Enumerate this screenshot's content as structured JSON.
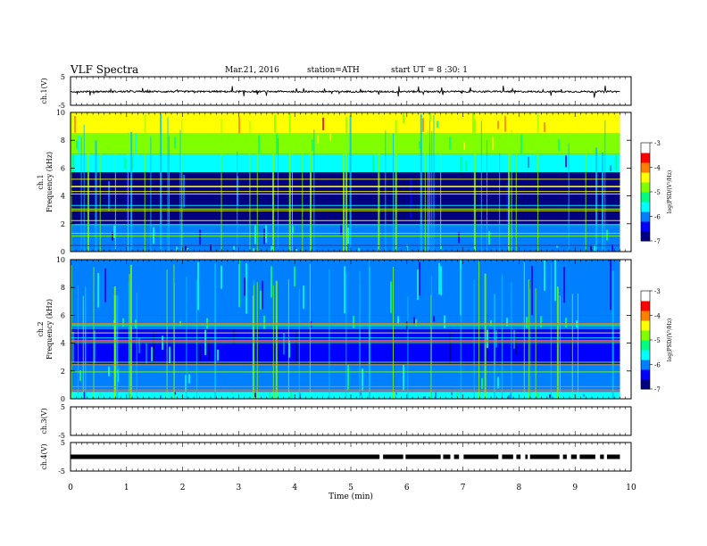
{
  "header": {
    "title": "VLF Spectra",
    "date": "Mar.21, 2016",
    "station": "station=ATH",
    "start": "start UT = 8 :30: 1"
  },
  "colorbar": {
    "label": "log(PSD/(V²/Hz)",
    "ticks": [
      "-3",
      "-4",
      "-5",
      "-6",
      "-7"
    ],
    "colors": [
      "#000080",
      "#0000ff",
      "#0080ff",
      "#00ffff",
      "#00ff80",
      "#80ff00",
      "#ffff00",
      "#ff8000",
      "#ff0000",
      "#ffffff"
    ]
  },
  "chart_data": [
    {
      "type": "line",
      "panel": "ch.1",
      "ylabel": "ch.1(V)",
      "ylim": [
        -5,
        5
      ],
      "yticks": [
        "5",
        "-5"
      ],
      "series": [
        {
          "x_range_min": [
            0,
            9.8
          ],
          "baseline_V": -0.2,
          "noise_amplitude_V": 0.6,
          "spike_amplitude_V": 2.0
        }
      ]
    },
    {
      "type": "heatmap",
      "panel": "ch.1 spectrogram",
      "ylabel": "ch.1 Frequency (kHz)",
      "xlim": [
        0,
        9.8
      ],
      "ylim": [
        0,
        10
      ],
      "yticks": [
        "10",
        "8",
        "6",
        "4",
        "2",
        "0"
      ],
      "bands": [
        {
          "from_kHz": 0,
          "to_kHz": 0.5,
          "logPSD": -6.2
        },
        {
          "from_kHz": 0.5,
          "to_kHz": 2.0,
          "logPSD": -6.0
        },
        {
          "from_kHz": 2.0,
          "to_kHz": 5.7,
          "logPSD": -6.8
        },
        {
          "from_kHz": 5.7,
          "to_kHz": 7.0,
          "logPSD": -5.6
        },
        {
          "from_kHz": 7.0,
          "to_kHz": 8.5,
          "logPSD": -5.0
        },
        {
          "from_kHz": 8.5,
          "to_kHz": 10.0,
          "logPSD": -4.4
        }
      ]
    },
    {
      "type": "heatmap",
      "panel": "ch.2 spectrogram",
      "ylabel": "ch.2 Frequency (kHz)",
      "xlim": [
        0,
        9.8
      ],
      "ylim": [
        0,
        10
      ],
      "yticks": [
        "10",
        "8",
        "6",
        "4",
        "2",
        "0"
      ],
      "bands": [
        {
          "from_kHz": 0,
          "to_kHz": 0.5,
          "logPSD": -5.8
        },
        {
          "from_kHz": 0.5,
          "to_kHz": 2.5,
          "logPSD": -6.0
        },
        {
          "from_kHz": 2.5,
          "to_kHz": 5.0,
          "logPSD": -6.5
        },
        {
          "from_kHz": 5.0,
          "to_kHz": 6.0,
          "logPSD": -6.0
        },
        {
          "from_kHz": 6.0,
          "to_kHz": 10.0,
          "logPSD": -5.9
        }
      ]
    },
    {
      "type": "line",
      "panel": "ch.3",
      "ylabel": "ch.3(V)",
      "ylim": [
        -5,
        5
      ],
      "yticks": [
        "5",
        "-5"
      ],
      "series": []
    },
    {
      "type": "line",
      "panel": "ch.4",
      "ylabel": "ch.4(V)",
      "ylim": [
        -5,
        5
      ],
      "yticks": [
        "5",
        "-5"
      ],
      "series": [
        {
          "x_range_min": [
            0,
            9.8
          ],
          "level_V": 0
        }
      ]
    }
  ],
  "xaxis": {
    "label": "Time (min)",
    "ticks": [
      "0",
      "1",
      "2",
      "3",
      "4",
      "5",
      "6",
      "7",
      "8",
      "9",
      "10"
    ],
    "xlim": [
      0,
      10
    ]
  }
}
